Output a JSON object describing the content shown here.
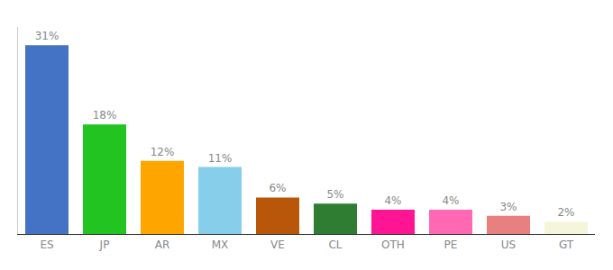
{
  "chart_data": {
    "type": "bar",
    "categories": [
      "ES",
      "JP",
      "AR",
      "MX",
      "VE",
      "CL",
      "OTH",
      "PE",
      "US",
      "GT"
    ],
    "values": [
      31,
      18,
      12,
      11,
      6,
      5,
      4,
      4,
      3,
      2
    ],
    "value_labels": [
      "31%",
      "18%",
      "12%",
      "11%",
      "6%",
      "5%",
      "4%",
      "4%",
      "3%",
      "2%"
    ],
    "colors": [
      "#4472C4",
      "#22C422",
      "#FFA500",
      "#87CEEB",
      "#B8560A",
      "#2E7D32",
      "#FF1493",
      "#FF69B4",
      "#E88080",
      "#F5F5DC"
    ],
    "ylim": [
      0,
      34
    ],
    "grid": false,
    "data_labels": true,
    "tick_labels": "x"
  }
}
